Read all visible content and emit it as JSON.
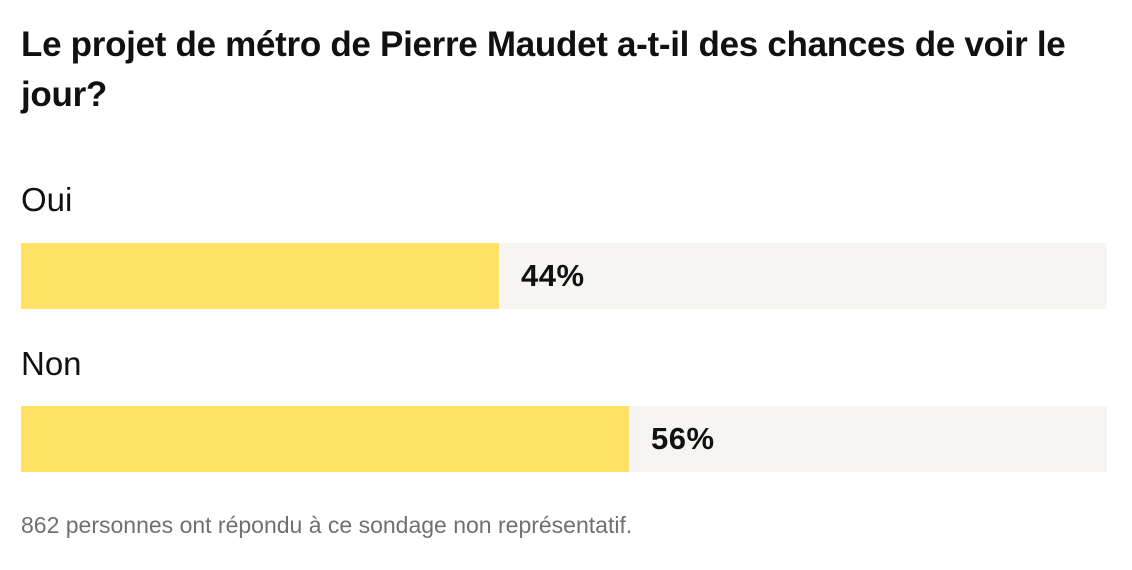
{
  "poll": {
    "question": "Le projet de métro de Pierre Maudet a-t-il des chances de voir le jour?",
    "options": [
      {
        "label": "Oui",
        "percent": 44,
        "percent_label": "44%"
      },
      {
        "label": "Non",
        "percent": 56,
        "percent_label": "56%"
      }
    ],
    "footnote": "862 personnes ont répondu à ce sondage non représentatif.",
    "colors": {
      "fill": "#ffe264",
      "track": "#f6f5f2",
      "text": "#111111",
      "footnote": "#707070"
    }
  }
}
